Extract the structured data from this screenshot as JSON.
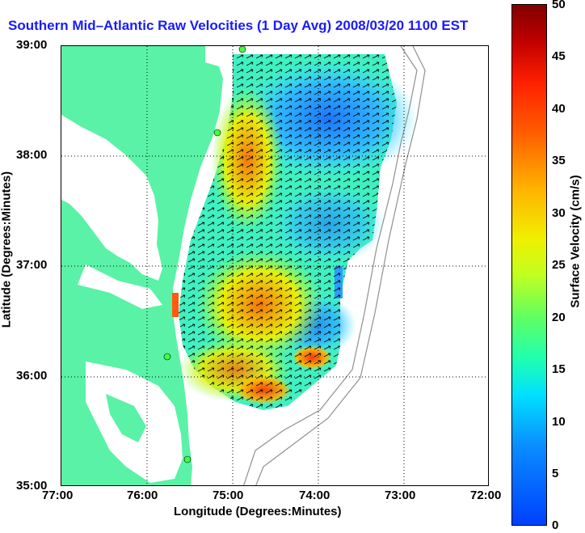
{
  "title": "Southern Mid–Atlantic Raw Velocities (1 Day Avg) 2008/03/20 1100 EST",
  "axes": {
    "xlabel": "Longitude (Degrees:Minutes)",
    "ylabel": "Latitude (Degrees:Minutes)",
    "xticks": [
      "77:00",
      "76:00",
      "75:00",
      "74:00",
      "73:00",
      "72:00"
    ],
    "yticks": [
      "39:00",
      "38:00",
      "37:00",
      "36:00",
      "35:00"
    ]
  },
  "colorbar": {
    "label": "Surface Velocity (cm/s)",
    "ticks": [
      "50",
      "45",
      "40",
      "35",
      "30",
      "25",
      "20",
      "15",
      "10",
      "5",
      "0"
    ],
    "min": 0,
    "max": 50
  },
  "colors": {
    "land": "#5af2a6",
    "title": "#1a1aff",
    "grid": "#000000"
  }
}
